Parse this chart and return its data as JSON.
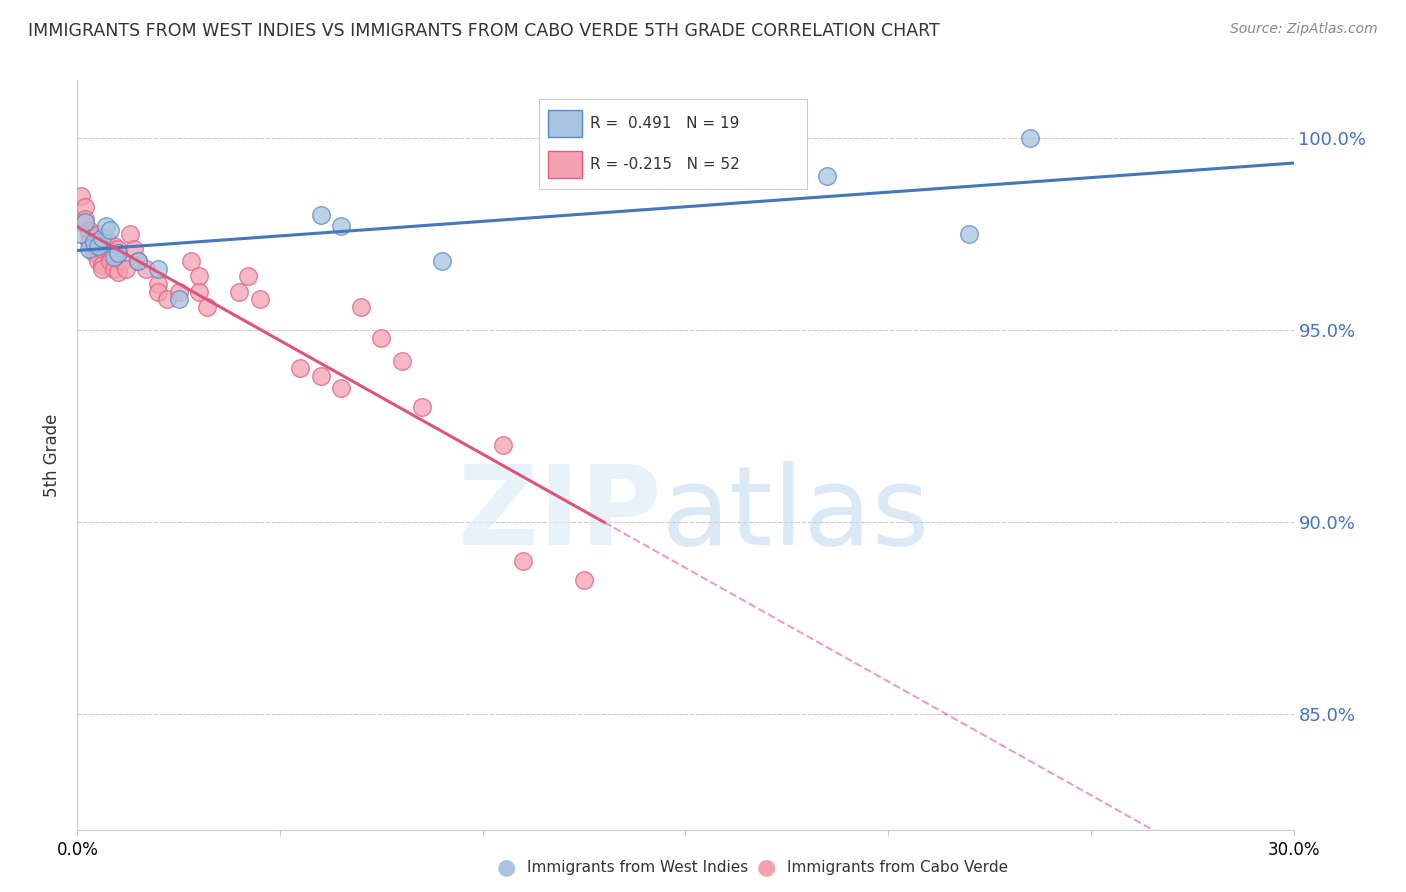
{
  "title": "IMMIGRANTS FROM WEST INDIES VS IMMIGRANTS FROM CABO VERDE 5TH GRADE CORRELATION CHART",
  "source": "Source: ZipAtlas.com",
  "ylabel": "5th Grade",
  "xlim": [
    0.0,
    0.3
  ],
  "ylim": [
    0.82,
    1.015
  ],
  "yticks": [
    0.85,
    0.9,
    0.95,
    1.0
  ],
  "ytick_labels": [
    "85.0%",
    "90.0%",
    "95.0%",
    "100.0%"
  ],
  "blue_label": "Immigrants from West Indies",
  "pink_label": "Immigrants from Cabo Verde",
  "blue_R": 0.491,
  "blue_N": 19,
  "pink_R": -0.215,
  "pink_N": 52,
  "blue_color": "#a8c4e0",
  "pink_color": "#f4a0b0",
  "blue_edge_color": "#5588cc",
  "pink_edge_color": "#e06080",
  "blue_line_color": "#4477bb",
  "pink_line_color": "#dd5577",
  "grid_color": "#cccccc",
  "axis_label_color": "#4472c4",
  "title_color": "#333333",
  "source_color": "#888888",
  "blue_x": [
    0.001,
    0.002,
    0.003,
    0.004,
    0.005,
    0.006,
    0.007,
    0.008,
    0.009,
    0.01,
    0.015,
    0.02,
    0.025,
    0.06,
    0.065,
    0.09,
    0.185,
    0.22,
    0.235
  ],
  "blue_y": [
    0.975,
    0.978,
    0.971,
    0.973,
    0.972,
    0.974,
    0.977,
    0.976,
    0.969,
    0.97,
    0.968,
    0.966,
    0.958,
    0.98,
    0.977,
    0.968,
    0.99,
    0.975,
    1.0
  ],
  "pink_x": [
    0.001,
    0.001,
    0.002,
    0.002,
    0.003,
    0.003,
    0.003,
    0.004,
    0.004,
    0.004,
    0.005,
    0.005,
    0.005,
    0.006,
    0.006,
    0.006,
    0.007,
    0.007,
    0.008,
    0.008,
    0.009,
    0.009,
    0.01,
    0.01,
    0.01,
    0.011,
    0.012,
    0.013,
    0.014,
    0.015,
    0.017,
    0.02,
    0.02,
    0.022,
    0.025,
    0.028,
    0.03,
    0.03,
    0.032,
    0.04,
    0.042,
    0.045,
    0.055,
    0.06,
    0.065,
    0.07,
    0.075,
    0.08,
    0.085,
    0.105,
    0.11,
    0.125
  ],
  "pink_y": [
    0.985,
    0.978,
    0.982,
    0.979,
    0.976,
    0.975,
    0.973,
    0.974,
    0.972,
    0.97,
    0.975,
    0.97,
    0.968,
    0.967,
    0.971,
    0.966,
    0.974,
    0.972,
    0.97,
    0.968,
    0.972,
    0.966,
    0.971,
    0.97,
    0.965,
    0.968,
    0.966,
    0.975,
    0.971,
    0.968,
    0.966,
    0.962,
    0.96,
    0.958,
    0.96,
    0.968,
    0.964,
    0.96,
    0.956,
    0.96,
    0.964,
    0.958,
    0.94,
    0.938,
    0.935,
    0.956,
    0.948,
    0.942,
    0.93,
    0.92,
    0.89,
    0.885
  ]
}
